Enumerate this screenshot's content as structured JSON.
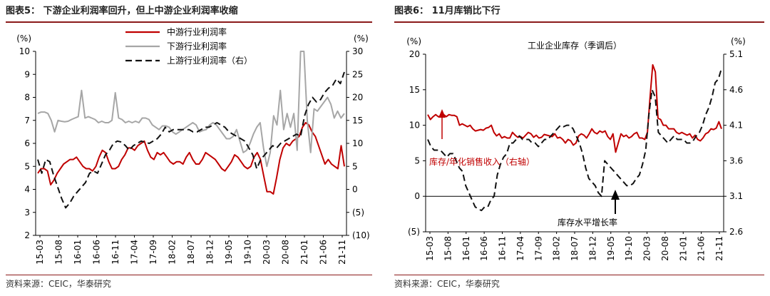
{
  "charts": [
    {
      "figure_label": "图表5：",
      "title": "下游企业利润率回升，但上中游企业利润率收缩",
      "source": "资料来源：CEIC，华泰研究",
      "chart_data": {
        "type": "line",
        "left_axis": {
          "label": "(%)",
          "range": [
            2,
            10
          ],
          "ticks": [
            "2",
            "3",
            "4",
            "5",
            "6",
            "7",
            "8",
            "9",
            "10"
          ]
        },
        "right_axis": {
          "label": "(%)",
          "range": [
            -10,
            30
          ],
          "ticks": [
            "(10)",
            "(5)",
            "0",
            "5",
            "10",
            "15",
            "20",
            "25",
            "30"
          ]
        },
        "x_tick_labels": [
          "15-03",
          "15-08",
          "16-01",
          "16-06",
          "16-11",
          "17-04",
          "17-09",
          "18-02",
          "18-07",
          "18-12",
          "19-05",
          "19-10",
          "20-03",
          "20-08",
          "21-01",
          "21-06",
          "21-11"
        ],
        "legend": [
          "中游行业利润率",
          "下游行业利润率",
          "上游行业利润率（右）"
        ],
        "legend_position": "top",
        "series": [
          {
            "name": "中游行业利润率",
            "axis": "left",
            "color": "#c00000",
            "dash": "",
            "values": [
              4.7,
              4.9,
              4.9,
              4.8,
              4.2,
              4.4,
              4.7,
              4.9,
              5.1,
              5.2,
              5.3,
              5.3,
              5.4,
              5.2,
              5.0,
              4.9,
              4.9,
              4.8,
              5.0,
              5.4,
              5.7,
              5.6,
              5.2,
              4.9,
              4.9,
              5.0,
              5.3,
              5.5,
              5.8,
              5.8,
              5.7,
              5.9,
              6.0,
              6.1,
              5.7,
              5.4,
              5.3,
              5.6,
              5.5,
              5.6,
              5.4,
              5.2,
              5.1,
              5.2,
              5.2,
              5.1,
              5.4,
              5.6,
              5.3,
              5.1,
              5.1,
              5.3,
              5.6,
              5.5,
              5.4,
              5.3,
              5.1,
              4.9,
              4.8,
              5.0,
              5.2,
              5.5,
              5.4,
              5.2,
              5.0,
              4.9,
              5.0,
              5.4,
              5.6,
              5.3,
              4.6,
              3.9,
              3.9,
              3.8,
              4.5,
              5.3,
              5.8,
              6.0,
              5.9,
              6.1,
              6.2,
              6.3,
              6.7,
              6.9,
              6.8,
              6.5,
              6.3,
              5.9,
              5.5,
              5.1,
              5.3,
              5.1,
              5.0,
              4.9,
              5.9,
              5.0
            ]
          },
          {
            "name": "下游行业利润率",
            "axis": "right",
            "color": "#a6a6a6",
            "dash": "",
            "values": [
              16.5,
              16.8,
              16.8,
              16.5,
              15.0,
              12.5,
              15.0,
              14.8,
              14.7,
              14.8,
              15.2,
              15.5,
              15.8,
              21.5,
              15.5,
              15.8,
              15.5,
              15.2,
              14.5,
              14.8,
              14.5,
              14.5,
              15.0,
              21.0,
              15.5,
              15.2,
              14.5,
              14.8,
              14.5,
              14.8,
              14.5,
              15.5,
              15.5,
              15.2,
              14.0,
              13.5,
              13.0,
              13.8,
              13.8,
              13.5,
              12.5,
              12.0,
              12.5,
              13.0,
              13.5,
              14.0,
              14.5,
              14.0,
              12.5,
              12.8,
              13.0,
              14.0,
              14.5,
              14.0,
              13.0,
              12.0,
              11.0,
              11.0,
              11.5,
              13.0,
              10.5,
              8.0,
              8.5,
              10.0,
              12.0,
              13.5,
              14.5,
              9.0,
              5.0,
              8.0,
              16.0,
              14.0,
              21.5,
              13.0,
              16.5,
              13.5,
              16.5,
              8.5,
              30.0,
              30.0,
              15.0,
              8.0,
              17.5,
              17.0,
              18.0,
              19.0,
              20.0,
              18.5,
              15.5,
              17.0,
              15.5,
              16.5
            ]
          },
          {
            "name": "上游行业利润率（右）",
            "axis": "right",
            "color": "#111111",
            "dash": "9,5",
            "values": [
              6.5,
              3.5,
              6.5,
              6.0,
              3.0,
              0.5,
              -2.0,
              -4.0,
              -3.0,
              -1.5,
              -0.5,
              0.5,
              1.5,
              3.5,
              4.0,
              3.5,
              5.5,
              7.5,
              8.5,
              10.0,
              10.5,
              10.3,
              9.5,
              8.5,
              9.5,
              10.0,
              10.5,
              10.2,
              10.0,
              10.5,
              11.0,
              12.0,
              13.5,
              12.5,
              13.0,
              13.0,
              13.0,
              13.0,
              13.0,
              12.5,
              12.5,
              13.0,
              13.5,
              13.5,
              14.0,
              14.5,
              14.0,
              13.5,
              12.5,
              12.0,
              11.5,
              11.0,
              10.5,
              9.0,
              7.5,
              4.5,
              6.5,
              7.5,
              8.5,
              9.5,
              9.0,
              10.0,
              10.5,
              11.0,
              11.5,
              12.0,
              11.5,
              16.0,
              18.5,
              20.0,
              19.0,
              19.5,
              21.0,
              22.0,
              22.5,
              24.0,
              23.0,
              25.5
            ]
          }
        ]
      }
    },
    {
      "figure_label": "图表6：",
      "title": "11月库销比下行",
      "source": "资料来源：CEIC，华泰研究",
      "chart_data": {
        "type": "line",
        "chart_title": "工业企业库存（季调后）",
        "left_axis": {
          "label": "(%)",
          "range": [
            -5,
            20
          ],
          "ticks": [
            "(5)",
            "0",
            "5",
            "10",
            "15",
            "20"
          ]
        },
        "right_axis": {
          "label": "(%)",
          "range": [
            2.6,
            5.1
          ],
          "ticks": [
            "2.6",
            "3.1",
            "3.6",
            "4.1",
            "4.6",
            "5.1"
          ]
        },
        "x_tick_labels": [
          "15-03",
          "15-08",
          "16-01",
          "16-06",
          "16-11",
          "17-04",
          "17-09",
          "18-02",
          "18-07",
          "18-12",
          "19-05",
          "19-10",
          "20-03",
          "20-08",
          "21-01",
          "21-06",
          "21-11"
        ],
        "annotations": [
          "库存/年化销售收入（右轴）",
          "库存水平增长率"
        ],
        "series": [
          {
            "name": "库存/年化销售收入（右轴）",
            "axis": "right",
            "color": "#c00000",
            "dash": "",
            "values": [
              4.25,
              4.18,
              4.22,
              4.25,
              4.22,
              4.23,
              4.25,
              4.22,
              4.25,
              4.24,
              4.24,
              4.22,
              4.1,
              4.12,
              4.1,
              4.08,
              4.1,
              4.05,
              4.02,
              4.03,
              4.04,
              4.03,
              4.06,
              4.07,
              4.1,
              4.0,
              3.95,
              3.98,
              3.92,
              3.94,
              3.92,
              3.92,
              4.0,
              3.96,
              3.93,
              3.94,
              3.92,
              3.96,
              4.0,
              3.98,
              3.93,
              3.96,
              3.92,
              3.93,
              3.97,
              3.96,
              3.95,
              3.94,
              3.98,
              3.92,
              3.93,
              3.9,
              3.85,
              3.9,
              3.88,
              3.82,
              3.85,
              3.95,
              3.98,
              3.96,
              3.92,
              3.98,
              4.05,
              4.0,
              3.98,
              4.02,
              4.0,
              4.02,
              3.94,
              3.9,
              3.98,
              3.72,
              3.85,
              3.98,
              3.94,
              3.96,
              3.92,
              3.94,
              3.98,
              4.0,
              3.92,
              3.92,
              3.9,
              4.0,
              4.5,
              4.95,
              4.85,
              4.2,
              4.18,
              4.1,
              4.1,
              4.05,
              4.05,
              4.05,
              4.0,
              3.98,
              4.0,
              3.98,
              3.96,
              3.98,
              3.92,
              3.96,
              3.9,
              3.88,
              3.92,
              3.98,
              4.0,
              4.05,
              4.04,
              4.06,
              4.15,
              4.05
            ]
          },
          {
            "name": "库存水平增长率",
            "axis": "left",
            "color": "#111111",
            "dash": "9,5",
            "values": [
              8.0,
              7.0,
              6.5,
              6.5,
              6.5,
              6.0,
              5.5,
              6.0,
              6.0,
              5.0,
              4.0,
              3.5,
              1.5,
              0.5,
              -0.5,
              -1.5,
              -1.8,
              -2.0,
              -1.5,
              -1.5,
              -0.5,
              0.0,
              3.0,
              4.5,
              5.5,
              6.0,
              7.5,
              7.5,
              8.0,
              8.5,
              8.0,
              8.0,
              8.0,
              7.5,
              7.5,
              7.0,
              7.5,
              8.0,
              8.0,
              8.5,
              9.0,
              9.5,
              10.0,
              9.8,
              10.0,
              10.0,
              9.5,
              8.5,
              7.5,
              6.0,
              4.0,
              2.5,
              2.0,
              1.5,
              0.5,
              0.0,
              5.0,
              4.5,
              4.0,
              3.5,
              3.0,
              2.5,
              2.0,
              1.5,
              1.5,
              1.8,
              2.5,
              3.0,
              4.5,
              6.5,
              11.5,
              15.0,
              14.0,
              9.0,
              8.5,
              8.0,
              7.5,
              8.0,
              8.5,
              8.0,
              8.0,
              8.0,
              7.5,
              7.5,
              7.8,
              8.5,
              9.0,
              10.0,
              11.5,
              12.5,
              14.0,
              16.0,
              16.5,
              18.0
            ]
          }
        ]
      }
    }
  ]
}
